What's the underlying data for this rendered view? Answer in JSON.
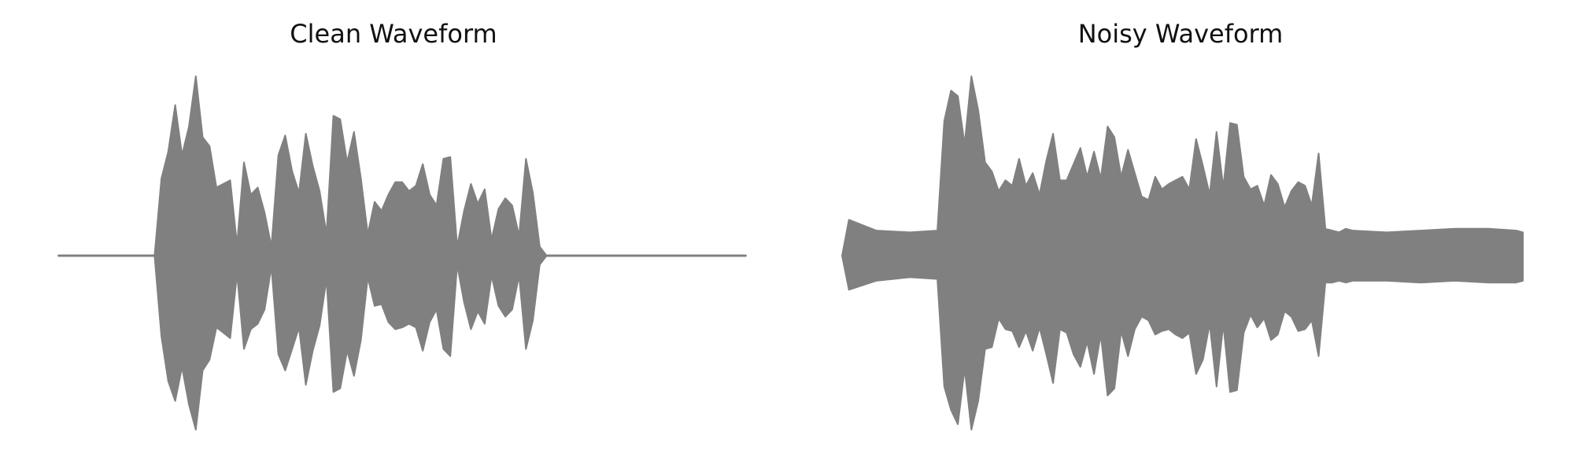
{
  "chart_data": [
    {
      "type": "area",
      "title": "Clean Waveform",
      "xlabel": "",
      "ylabel": "",
      "axes_visible": false,
      "grid": false,
      "color": "#808080",
      "ylim": [
        -1.0,
        1.0
      ],
      "x": [
        0.0,
        0.05,
        0.1,
        0.14,
        0.15,
        0.16,
        0.17,
        0.18,
        0.19,
        0.2,
        0.21,
        0.22,
        0.23,
        0.24,
        0.25,
        0.26,
        0.27,
        0.28,
        0.29,
        0.3,
        0.31,
        0.32,
        0.33,
        0.34,
        0.35,
        0.36,
        0.37,
        0.38,
        0.39,
        0.4,
        0.41,
        0.42,
        0.43,
        0.44,
        0.45,
        0.46,
        0.47,
        0.48,
        0.49,
        0.5,
        0.51,
        0.52,
        0.53,
        0.54,
        0.55,
        0.56,
        0.57,
        0.58,
        0.59,
        0.6,
        0.61,
        0.62,
        0.63,
        0.64,
        0.65,
        0.66,
        0.67,
        0.68,
        0.69,
        0.7,
        0.71,
        0.72,
        0.73,
        0.74,
        0.75,
        0.8,
        0.9,
        1.0
      ],
      "series": [
        {
          "upper": [
            0.0,
            0.0,
            0.0,
            0.0,
            0.43,
            0.58,
            0.84,
            0.56,
            0.72,
            1.0,
            0.66,
            0.61,
            0.38,
            0.4,
            0.42,
            0.06,
            0.52,
            0.34,
            0.38,
            0.24,
            0.05,
            0.56,
            0.67,
            0.47,
            0.35,
            0.68,
            0.5,
            0.36,
            0.12,
            0.78,
            0.76,
            0.52,
            0.69,
            0.43,
            0.12,
            0.3,
            0.25,
            0.34,
            0.41,
            0.41,
            0.36,
            0.39,
            0.51,
            0.34,
            0.28,
            0.54,
            0.55,
            0.05,
            0.25,
            0.4,
            0.29,
            0.37,
            0.09,
            0.26,
            0.32,
            0.28,
            0.11,
            0.54,
            0.35,
            0.05,
            0.0,
            0.0,
            0.0,
            0.0,
            0.0,
            0.0,
            0.0,
            0.0
          ],
          "lower": [
            0.0,
            0.0,
            0.0,
            0.0,
            -0.45,
            -0.7,
            -0.81,
            -0.62,
            -0.83,
            -0.97,
            -0.64,
            -0.58,
            -0.4,
            -0.43,
            -0.46,
            -0.1,
            -0.52,
            -0.41,
            -0.38,
            -0.3,
            -0.06,
            -0.55,
            -0.64,
            -0.52,
            -0.4,
            -0.72,
            -0.53,
            -0.39,
            -0.13,
            -0.76,
            -0.74,
            -0.53,
            -0.67,
            -0.47,
            -0.12,
            -0.28,
            -0.27,
            -0.37,
            -0.41,
            -0.4,
            -0.38,
            -0.4,
            -0.53,
            -0.37,
            -0.3,
            -0.52,
            -0.56,
            -0.05,
            -0.26,
            -0.41,
            -0.31,
            -0.38,
            -0.11,
            -0.28,
            -0.34,
            -0.3,
            -0.11,
            -0.52,
            -0.36,
            -0.05,
            0.0,
            0.0,
            0.0,
            0.0,
            0.0,
            0.0,
            0.0,
            0.0
          ]
        }
      ]
    },
    {
      "type": "area",
      "title": "Noisy Waveform",
      "xlabel": "",
      "ylabel": "",
      "axes_visible": false,
      "grid": false,
      "color": "#808080",
      "ylim": [
        -1.0,
        1.0
      ],
      "x": [
        0.0,
        0.01,
        0.05,
        0.1,
        0.14,
        0.15,
        0.16,
        0.17,
        0.18,
        0.19,
        0.2,
        0.21,
        0.22,
        0.23,
        0.24,
        0.25,
        0.26,
        0.27,
        0.28,
        0.29,
        0.3,
        0.31,
        0.32,
        0.33,
        0.34,
        0.35,
        0.36,
        0.37,
        0.38,
        0.39,
        0.4,
        0.41,
        0.42,
        0.43,
        0.44,
        0.45,
        0.46,
        0.47,
        0.48,
        0.49,
        0.5,
        0.51,
        0.52,
        0.53,
        0.54,
        0.55,
        0.56,
        0.57,
        0.58,
        0.59,
        0.6,
        0.61,
        0.62,
        0.63,
        0.64,
        0.65,
        0.66,
        0.67,
        0.68,
        0.69,
        0.7,
        0.71,
        0.72,
        0.73,
        0.74,
        0.75,
        0.8,
        0.85,
        0.9,
        0.95,
        0.99,
        1.0
      ],
      "series": [
        {
          "upper": [
            0.0,
            0.2,
            0.14,
            0.13,
            0.14,
            0.75,
            0.92,
            0.89,
            0.62,
            1.0,
            0.81,
            0.52,
            0.47,
            0.36,
            0.42,
            0.39,
            0.54,
            0.39,
            0.46,
            0.34,
            0.53,
            0.68,
            0.42,
            0.42,
            0.51,
            0.6,
            0.44,
            0.58,
            0.43,
            0.72,
            0.66,
            0.44,
            0.59,
            0.46,
            0.33,
            0.31,
            0.44,
            0.37,
            0.4,
            0.42,
            0.44,
            0.37,
            0.65,
            0.5,
            0.34,
            0.69,
            0.38,
            0.74,
            0.73,
            0.44,
            0.37,
            0.39,
            0.28,
            0.45,
            0.4,
            0.27,
            0.36,
            0.41,
            0.39,
            0.28,
            0.57,
            0.15,
            0.14,
            0.13,
            0.15,
            0.14,
            0.13,
            0.14,
            0.15,
            0.15,
            0.14,
            0.13
          ],
          "lower": [
            0.0,
            -0.19,
            -0.14,
            -0.12,
            -0.13,
            -0.73,
            -0.86,
            -0.94,
            -0.63,
            -0.97,
            -0.81,
            -0.52,
            -0.51,
            -0.35,
            -0.41,
            -0.42,
            -0.51,
            -0.42,
            -0.53,
            -0.4,
            -0.55,
            -0.71,
            -0.41,
            -0.43,
            -0.55,
            -0.62,
            -0.48,
            -0.66,
            -0.44,
            -0.78,
            -0.74,
            -0.42,
            -0.56,
            -0.41,
            -0.34,
            -0.36,
            -0.44,
            -0.42,
            -0.41,
            -0.44,
            -0.46,
            -0.43,
            -0.66,
            -0.58,
            -0.38,
            -0.73,
            -0.38,
            -0.76,
            -0.75,
            -0.43,
            -0.33,
            -0.4,
            -0.35,
            -0.47,
            -0.44,
            -0.31,
            -0.34,
            -0.42,
            -0.41,
            -0.36,
            -0.56,
            -0.15,
            -0.15,
            -0.14,
            -0.15,
            -0.14,
            -0.14,
            -0.15,
            -0.14,
            -0.15,
            -0.15,
            -0.14
          ]
        }
      ]
    }
  ]
}
